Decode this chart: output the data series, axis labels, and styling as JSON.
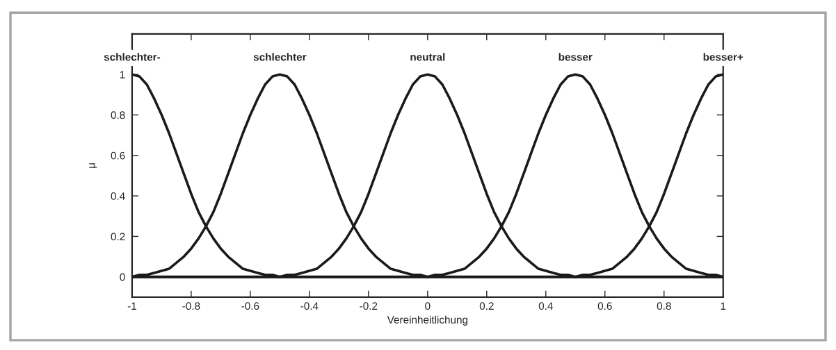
{
  "chart_data": {
    "type": "line",
    "xlabel": "Vereinheitlichung",
    "ylabel": "μ",
    "series": [
      {
        "name": "schlechter-",
        "color": "#1a1a1a",
        "x": [
          -1,
          -0.975,
          -0.95,
          -0.925,
          -0.9,
          -0.875,
          -0.85,
          -0.825,
          -0.8,
          -0.775,
          -0.75,
          -0.725,
          -0.7,
          -0.675,
          -0.65,
          -0.625,
          -0.6,
          -0.575,
          -0.55,
          -0.525,
          -0.5
        ],
        "values": [
          1,
          0.99,
          0.95,
          0.88,
          0.8,
          0.71,
          0.61,
          0.51,
          0.41,
          0.32,
          0.25,
          0.19,
          0.14,
          0.1,
          0.07,
          0.04,
          0.03,
          0.02,
          0.01,
          0.01,
          0
        ]
      },
      {
        "name": "schlechter",
        "color": "#1a1a1a",
        "x": [
          -1,
          -0.975,
          -0.95,
          -0.925,
          -0.9,
          -0.875,
          -0.85,
          -0.825,
          -0.8,
          -0.775,
          -0.75,
          -0.725,
          -0.7,
          -0.675,
          -0.65,
          -0.625,
          -0.6,
          -0.575,
          -0.55,
          -0.525,
          -0.5,
          -0.475,
          -0.45,
          -0.425,
          -0.4,
          -0.375,
          -0.35,
          -0.325,
          -0.3,
          -0.275,
          -0.25,
          -0.225,
          -0.2,
          -0.175,
          -0.15,
          -0.125,
          -0.1,
          -0.075,
          -0.05,
          -0.025,
          0
        ],
        "values": [
          0,
          0.01,
          0.01,
          0.02,
          0.03,
          0.04,
          0.07,
          0.1,
          0.14,
          0.19,
          0.25,
          0.32,
          0.41,
          0.51,
          0.61,
          0.71,
          0.8,
          0.88,
          0.95,
          0.99,
          1,
          0.99,
          0.95,
          0.88,
          0.8,
          0.71,
          0.61,
          0.51,
          0.41,
          0.32,
          0.25,
          0.19,
          0.14,
          0.1,
          0.07,
          0.04,
          0.03,
          0.02,
          0.01,
          0.01,
          0
        ]
      },
      {
        "name": "neutral",
        "color": "#1a1a1a",
        "x": [
          -0.5,
          -0.475,
          -0.45,
          -0.425,
          -0.4,
          -0.375,
          -0.35,
          -0.325,
          -0.3,
          -0.275,
          -0.25,
          -0.225,
          -0.2,
          -0.175,
          -0.15,
          -0.125,
          -0.1,
          -0.075,
          -0.05,
          -0.025,
          0,
          0.025,
          0.05,
          0.075,
          0.1,
          0.125,
          0.15,
          0.175,
          0.2,
          0.225,
          0.25,
          0.275,
          0.3,
          0.325,
          0.35,
          0.375,
          0.4,
          0.425,
          0.45,
          0.475,
          0.5
        ],
        "values": [
          0,
          0.01,
          0.01,
          0.02,
          0.03,
          0.04,
          0.07,
          0.1,
          0.14,
          0.19,
          0.25,
          0.32,
          0.41,
          0.51,
          0.61,
          0.71,
          0.8,
          0.88,
          0.95,
          0.99,
          1,
          0.99,
          0.95,
          0.88,
          0.8,
          0.71,
          0.61,
          0.51,
          0.41,
          0.32,
          0.25,
          0.19,
          0.14,
          0.1,
          0.07,
          0.04,
          0.03,
          0.02,
          0.01,
          0.01,
          0
        ]
      },
      {
        "name": "besser",
        "color": "#1a1a1a",
        "x": [
          0,
          0.025,
          0.05,
          0.075,
          0.1,
          0.125,
          0.15,
          0.175,
          0.2,
          0.225,
          0.25,
          0.275,
          0.3,
          0.325,
          0.35,
          0.375,
          0.4,
          0.425,
          0.45,
          0.475,
          0.5,
          0.525,
          0.55,
          0.575,
          0.6,
          0.625,
          0.65,
          0.675,
          0.7,
          0.725,
          0.75,
          0.775,
          0.8,
          0.825,
          0.85,
          0.875,
          0.9,
          0.925,
          0.95,
          0.975,
          1
        ],
        "values": [
          0,
          0.01,
          0.01,
          0.02,
          0.03,
          0.04,
          0.07,
          0.1,
          0.14,
          0.19,
          0.25,
          0.32,
          0.41,
          0.51,
          0.61,
          0.71,
          0.8,
          0.88,
          0.95,
          0.99,
          1,
          0.99,
          0.95,
          0.88,
          0.8,
          0.71,
          0.61,
          0.51,
          0.41,
          0.32,
          0.25,
          0.19,
          0.14,
          0.1,
          0.07,
          0.04,
          0.03,
          0.02,
          0.01,
          0.01,
          0
        ]
      },
      {
        "name": "besser+",
        "color": "#1a1a1a",
        "x": [
          0.5,
          0.525,
          0.55,
          0.575,
          0.6,
          0.625,
          0.65,
          0.675,
          0.7,
          0.725,
          0.75,
          0.775,
          0.8,
          0.825,
          0.85,
          0.875,
          0.9,
          0.925,
          0.95,
          0.975,
          1
        ],
        "values": [
          0,
          0.01,
          0.01,
          0.02,
          0.03,
          0.04,
          0.07,
          0.1,
          0.14,
          0.19,
          0.25,
          0.32,
          0.41,
          0.51,
          0.61,
          0.71,
          0.8,
          0.88,
          0.95,
          0.99,
          1
        ]
      }
    ],
    "ref_lines": [
      {
        "axis": "y",
        "value": 0,
        "color": "#1a1a1a"
      }
    ],
    "xlim": [
      -1,
      1
    ],
    "xticks": [
      -1,
      -0.8,
      -0.6,
      -0.4,
      -0.2,
      0,
      0.2,
      0.4,
      0.6,
      0.8,
      1
    ],
    "ylim": [
      -0.1,
      1.2
    ],
    "yticks": [
      0,
      0.2,
      0.4,
      0.6,
      0.8,
      1
    ],
    "grid": false,
    "marker": "none",
    "line_style": "solid"
  }
}
